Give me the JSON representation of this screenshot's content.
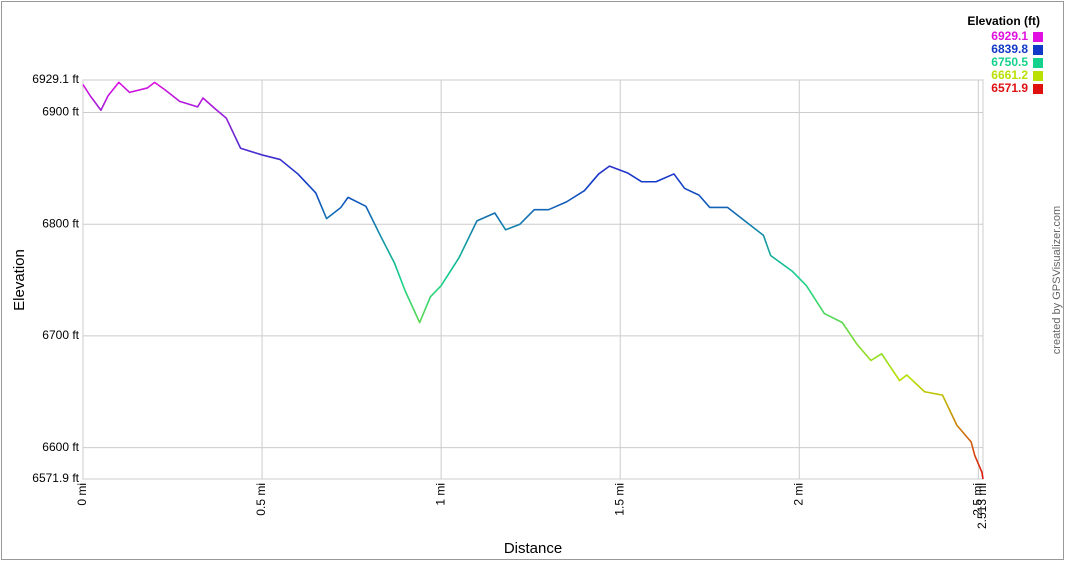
{
  "chart_data": {
    "type": "line",
    "y_label": "Elevation",
    "x_label": "Distance",
    "credit": "created by GPSVisualizer.com",
    "x": [
      0,
      0.02,
      0.05,
      0.07,
      0.1,
      0.13,
      0.18,
      0.2,
      0.23,
      0.27,
      0.32,
      0.335,
      0.37,
      0.4,
      0.44,
      0.5,
      0.55,
      0.6,
      0.65,
      0.68,
      0.72,
      0.74,
      0.79,
      0.83,
      0.87,
      0.9,
      0.94,
      0.97,
      1.0,
      1.05,
      1.1,
      1.15,
      1.18,
      1.22,
      1.26,
      1.3,
      1.35,
      1.4,
      1.44,
      1.47,
      1.52,
      1.56,
      1.6,
      1.65,
      1.68,
      1.72,
      1.75,
      1.8,
      1.86,
      1.9,
      1.92,
      1.98,
      2.02,
      2.07,
      2.12,
      2.16,
      2.2,
      2.23,
      2.28,
      2.3,
      2.35,
      2.4,
      2.44,
      2.48,
      2.49,
      2.51,
      2.513
    ],
    "values": [
      6925,
      6915,
      6902,
      6915,
      6927,
      6918,
      6922,
      6927,
      6920,
      6910,
      6905,
      6913,
      6903,
      6895,
      6868,
      6862,
      6858,
      6845,
      6828,
      6805,
      6815,
      6824,
      6816,
      6790,
      6765,
      6740,
      6712,
      6735,
      6745,
      6770,
      6803,
      6810,
      6795,
      6800,
      6813,
      6813,
      6820,
      6830,
      6845,
      6852,
      6846,
      6838,
      6838,
      6845,
      6832,
      6826,
      6815,
      6815,
      6800,
      6790,
      6772,
      6758,
      6745,
      6720,
      6712,
      6693,
      6678,
      6684,
      6660,
      6665,
      6650,
      6647,
      6620,
      6605,
      6593,
      6578,
      6571.9
    ],
    "xlim": [
      0,
      2.513
    ],
    "xticks": [
      {
        "value": 0,
        "label": "0 mi"
      },
      {
        "value": 0.5,
        "label": "0.5 mi"
      },
      {
        "value": 1,
        "label": "1 mi"
      },
      {
        "value": 1.5,
        "label": "1.5 mi"
      },
      {
        "value": 2,
        "label": "2 mi"
      },
      {
        "value": 2.5,
        "label": "2.5 mi"
      },
      {
        "value": 2.513,
        "label": "2.513 mi"
      }
    ],
    "ylim": [
      6571.9,
      6929.1
    ],
    "yticks": [
      {
        "value": 6571.9,
        "label": "6571.9 ft"
      },
      {
        "value": 6600,
        "label": "6600 ft"
      },
      {
        "value": 6700,
        "label": "6700 ft"
      },
      {
        "value": 6800,
        "label": "6800 ft"
      },
      {
        "value": 6900,
        "label": "6900 ft"
      },
      {
        "value": 6929.1,
        "label": "6929.1 ft"
      }
    ],
    "grid": true,
    "legend": {
      "title": "Elevation (ft)",
      "stops": [
        6929.1,
        6839.8,
        6750.5,
        6661.2,
        6571.9
      ],
      "colors": [
        "#e010e0",
        "#1238c8",
        "#14d28c",
        "#b8e000",
        "#e01010"
      ]
    }
  }
}
